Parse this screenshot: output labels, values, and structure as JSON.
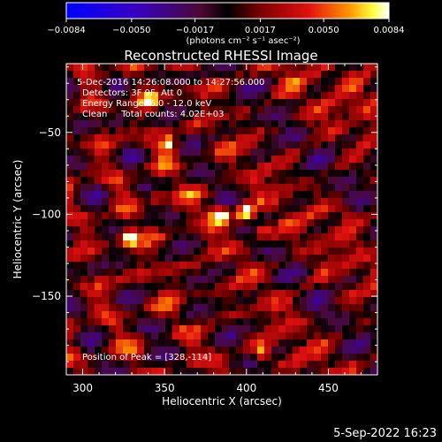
{
  "chart_data": {
    "type": "heatmap",
    "title": "Reconstructed RHESSI Image",
    "xlabel": "Heliocentric X (arcsec)",
    "ylabel": "Heliocentric Y (arcsec)",
    "xlim": [
      290,
      480
    ],
    "ylim": [
      -198,
      -8
    ],
    "x_ticks": [
      300,
      350,
      400,
      450
    ],
    "x_tick_labels": [
      "300",
      "350",
      "400",
      "450"
    ],
    "y_ticks": [
      -50,
      -100,
      -150
    ],
    "y_tick_labels": [
      "−50",
      "−100",
      "−150"
    ],
    "colorbar": {
      "range": [
        -0.0084,
        0.0084
      ],
      "ticks": [
        -0.0084,
        -0.005,
        -0.0017,
        0.0017,
        0.005,
        0.0084
      ],
      "tick_labels": [
        "−0.0084",
        "−0.0050",
        "−0.0017",
        "0.0017",
        "0.0050",
        "0.0084"
      ],
      "unit_label": "(photons cm⁻² s⁻¹ asec⁻²)"
    },
    "annotations": {
      "time_range": "5-Dec-2016 14:26:08.000 to 14:27:56.000",
      "detectors": "Detectors: 3F 9F, Att 0",
      "energy": "Energy Range: 6.0 - 12.0 keV",
      "method": "Clean     Total counts: 4.02E+03",
      "peak": "Position of Peak = [328,-114]"
    },
    "peak_position": [
      328,
      -114
    ],
    "bright_sources": [
      {
        "x": 328,
        "y": -114,
        "intensity": 0.0084
      },
      {
        "x": 384,
        "y": -100,
        "intensity": 0.0084
      },
      {
        "x": 400,
        "y": -100,
        "intensity": 0.0084
      },
      {
        "x": 410,
        "y": -110,
        "intensity": 0.0065
      },
      {
        "x": 345,
        "y": -88,
        "intensity": 0.006
      },
      {
        "x": 352,
        "y": -58,
        "intensity": 0.0062
      },
      {
        "x": 410,
        "y": -185,
        "intensity": 0.006
      },
      {
        "x": 340,
        "y": -30,
        "intensity": 0.0055
      },
      {
        "x": 462,
        "y": -100,
        "intensity": 0.004
      }
    ]
  },
  "footer": {
    "timestamp": "5-Sep-2022 16:23"
  }
}
